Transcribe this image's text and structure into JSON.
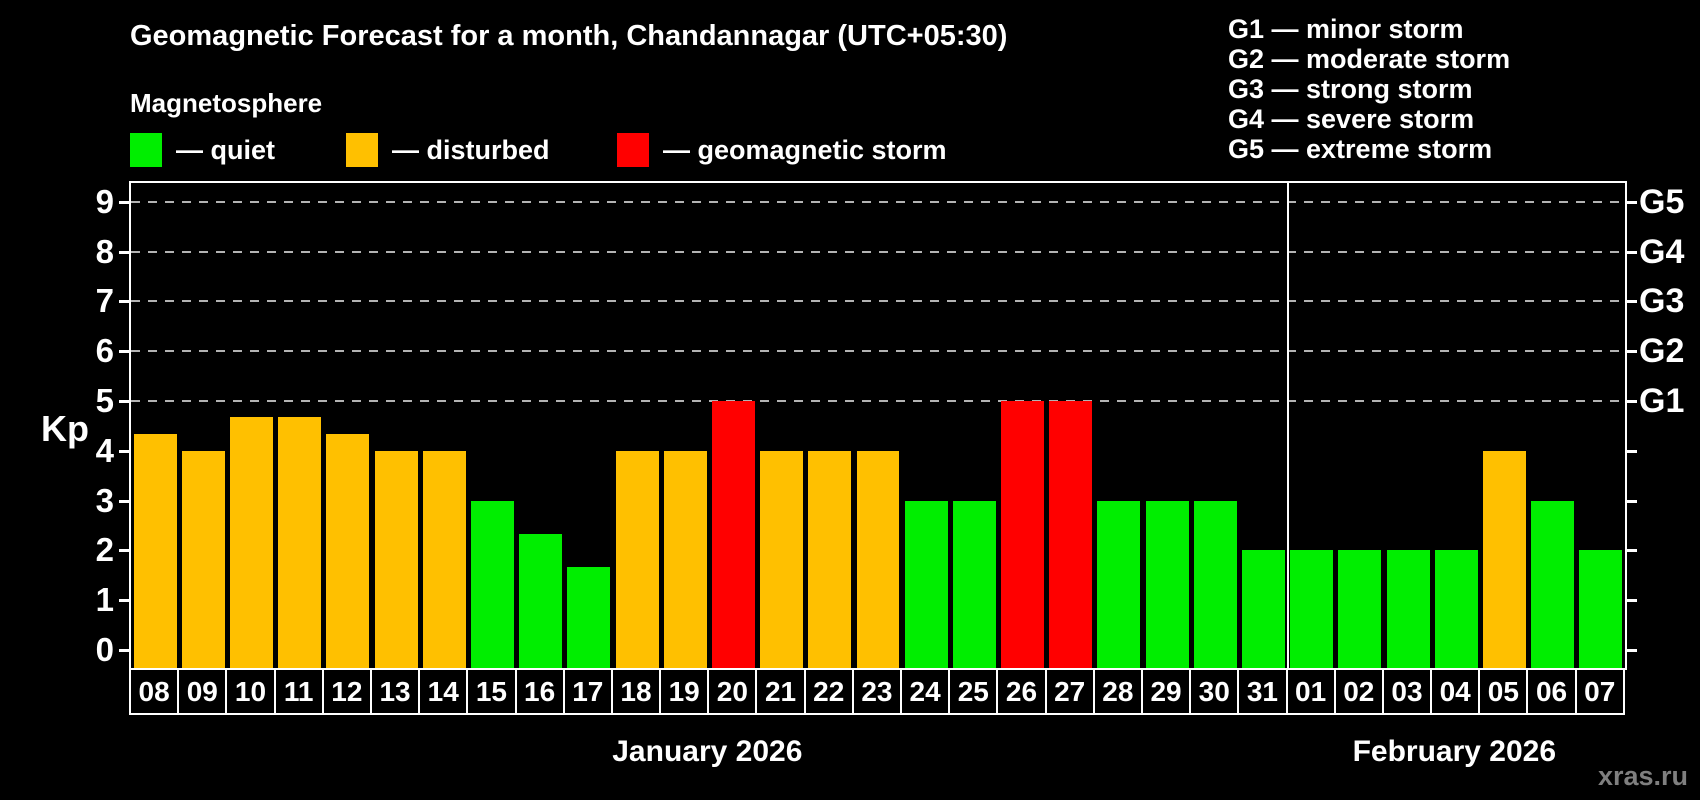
{
  "title": "Geomagnetic Forecast for a month, Chandannagar (UTC+05:30)",
  "subtitle": "Magnetosphere",
  "watermark": "xras.ru",
  "legend": {
    "items": [
      {
        "id": "quiet",
        "label": "— quiet",
        "color": "#00ee00"
      },
      {
        "id": "disturbed",
        "label": "— disturbed",
        "color": "#ffc000"
      },
      {
        "id": "storm",
        "label": "— geomagnetic storm",
        "color": "#ff0000"
      }
    ]
  },
  "storm_legend": [
    "G1 — minor storm",
    "G2 — moderate storm",
    "G3 — strong storm",
    "G4 — severe storm",
    "G5 — extreme storm"
  ],
  "axis": {
    "kp_label": "Kp",
    "y_ticks": [
      0,
      1,
      2,
      3,
      4,
      5,
      6,
      7,
      8,
      9
    ],
    "g_scale": [
      {
        "label": "G1",
        "kp": 5
      },
      {
        "label": "G2",
        "kp": 6
      },
      {
        "label": "G3",
        "kp": 7
      },
      {
        "label": "G4",
        "kp": 8
      },
      {
        "label": "G5",
        "kp": 9
      }
    ]
  },
  "chart_data": {
    "type": "bar",
    "title": "Geomagnetic Forecast for a month, Chandannagar (UTC+05:30)",
    "ylabel": "Kp",
    "ylim": [
      0,
      9
    ],
    "grid_levels": [
      5,
      6,
      7,
      8,
      9
    ],
    "legend_position": "top",
    "months": [
      {
        "label": "January 2026",
        "days": 24
      },
      {
        "label": "February 2026",
        "days": 7
      }
    ],
    "bars": [
      {
        "day": "08",
        "kp": 4.33,
        "status": "disturbed"
      },
      {
        "day": "09",
        "kp": 4,
        "status": "disturbed"
      },
      {
        "day": "10",
        "kp": 4.67,
        "status": "disturbed"
      },
      {
        "day": "11",
        "kp": 4.67,
        "status": "disturbed"
      },
      {
        "day": "12",
        "kp": 4.33,
        "status": "disturbed"
      },
      {
        "day": "13",
        "kp": 4,
        "status": "disturbed"
      },
      {
        "day": "14",
        "kp": 4,
        "status": "disturbed"
      },
      {
        "day": "15",
        "kp": 3,
        "status": "quiet"
      },
      {
        "day": "16",
        "kp": 2.33,
        "status": "quiet"
      },
      {
        "day": "17",
        "kp": 1.67,
        "status": "quiet"
      },
      {
        "day": "18",
        "kp": 4,
        "status": "disturbed"
      },
      {
        "day": "19",
        "kp": 4,
        "status": "disturbed"
      },
      {
        "day": "20",
        "kp": 5,
        "status": "storm"
      },
      {
        "day": "21",
        "kp": 4,
        "status": "disturbed"
      },
      {
        "day": "22",
        "kp": 4,
        "status": "disturbed"
      },
      {
        "day": "23",
        "kp": 4,
        "status": "disturbed"
      },
      {
        "day": "24",
        "kp": 3,
        "status": "quiet"
      },
      {
        "day": "25",
        "kp": 3,
        "status": "quiet"
      },
      {
        "day": "26",
        "kp": 5,
        "status": "storm"
      },
      {
        "day": "27",
        "kp": 5,
        "status": "storm"
      },
      {
        "day": "28",
        "kp": 3,
        "status": "quiet"
      },
      {
        "day": "29",
        "kp": 3,
        "status": "quiet"
      },
      {
        "day": "30",
        "kp": 3,
        "status": "quiet"
      },
      {
        "day": "31",
        "kp": 2,
        "status": "quiet"
      },
      {
        "day": "01",
        "kp": 2,
        "status": "quiet"
      },
      {
        "day": "02",
        "kp": 2,
        "status": "quiet"
      },
      {
        "day": "03",
        "kp": 2,
        "status": "quiet"
      },
      {
        "day": "04",
        "kp": 2,
        "status": "quiet"
      },
      {
        "day": "05",
        "kp": 4,
        "status": "disturbed"
      },
      {
        "day": "06",
        "kp": 3,
        "status": "quiet"
      },
      {
        "day": "07",
        "kp": 2,
        "status": "quiet"
      }
    ]
  }
}
